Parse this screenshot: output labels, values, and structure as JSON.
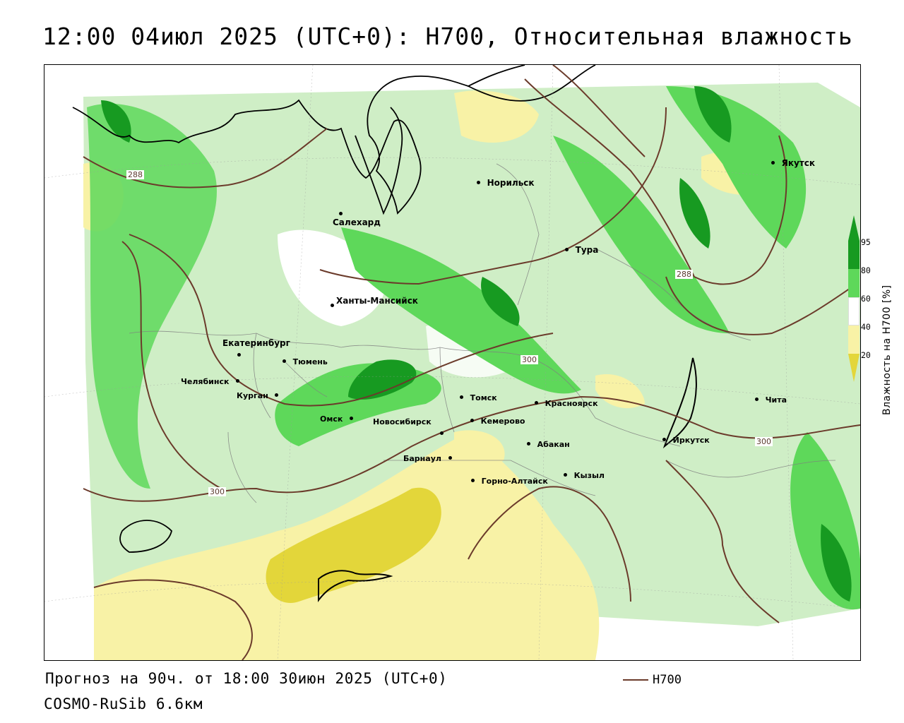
{
  "header": {
    "title": "12:00 04июл 2025 (UTC+0): H700, Относительная влажность"
  },
  "map": {
    "cities": [
      {
        "name": "Норильск"
      },
      {
        "name": "Якутск"
      },
      {
        "name": "Салехард"
      },
      {
        "name": "Тура"
      },
      {
        "name": "Ханты-Мансийск"
      },
      {
        "name": "Екатеринбург"
      },
      {
        "name": "Тюмень"
      },
      {
        "name": "Челябинск"
      },
      {
        "name": "Курган"
      },
      {
        "name": "Омск"
      },
      {
        "name": "Новосибирск"
      },
      {
        "name": "Томск"
      },
      {
        "name": "Кемерово"
      },
      {
        "name": "Красноярск"
      },
      {
        "name": "Барнаул"
      },
      {
        "name": "Абакан"
      },
      {
        "name": "Горно-Алтайск"
      },
      {
        "name": "Кызыл"
      },
      {
        "name": "Иркутск"
      },
      {
        "name": "Чита"
      }
    ],
    "isoline_labels": [
      "288",
      "288",
      "300",
      "300",
      "300"
    ],
    "colors": {
      "dry_40": "#f8f2a6",
      "dry_20": "#e3d63a",
      "wet_60": "#b9f0b0",
      "wet_80": "#5ed85a",
      "wet_95": "#179a21",
      "isoline": "#6b3b2b"
    }
  },
  "legend": {
    "ticks": [
      "95",
      "80",
      "60",
      "40",
      "20"
    ],
    "title": "Влажность на H700 [%]"
  },
  "footer": {
    "forecast": "Прогноз на 90ч. от 18:00 30июн 2025 (UTC+0)",
    "model": "COSMO-RuSib 6.6км",
    "line_legend_label": "H700"
  }
}
